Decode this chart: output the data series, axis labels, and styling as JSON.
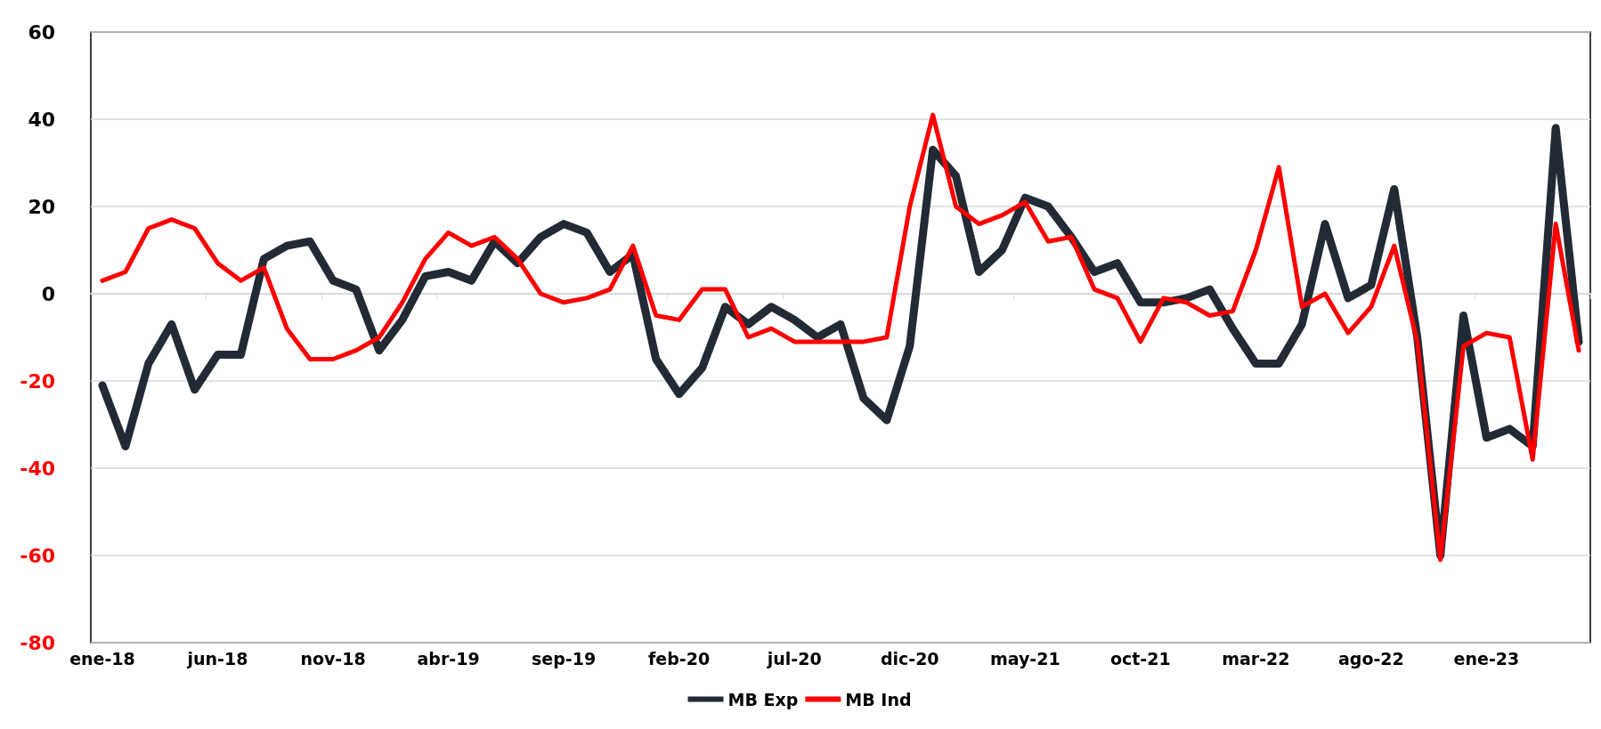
{
  "chart_data": {
    "type": "line",
    "categories": [
      "ene-18",
      null,
      null,
      null,
      null,
      "jun-18",
      null,
      null,
      null,
      null,
      "nov-18",
      null,
      null,
      null,
      null,
      "abr-19",
      null,
      null,
      null,
      null,
      "sep-19",
      null,
      null,
      null,
      null,
      "feb-20",
      null,
      null,
      null,
      null,
      "jul-20",
      null,
      null,
      null,
      null,
      "dic-20",
      null,
      null,
      null,
      null,
      "may-21",
      null,
      null,
      null,
      null,
      "oct-21",
      null,
      null,
      null,
      null,
      "mar-22",
      null,
      null,
      null,
      null,
      "ago-22",
      null,
      null,
      null,
      null,
      "ene-23",
      null,
      null,
      null,
      null
    ],
    "series": [
      {
        "name": "MB Exp",
        "color": "#222a35",
        "values": [
          -21,
          -35,
          -16,
          -7,
          -22,
          -14,
          -14,
          8,
          11,
          12,
          3,
          1,
          -13,
          -6,
          4,
          5,
          3,
          12,
          7,
          13,
          16,
          14,
          5,
          9,
          -15,
          -23,
          -17,
          -3,
          -7,
          -3,
          -6,
          -10,
          -7,
          -24,
          -29,
          -12,
          33,
          27,
          5,
          10,
          22,
          20,
          13,
          5,
          7,
          -2,
          -2,
          -1,
          1,
          -8,
          -16,
          -16,
          -7,
          16,
          -1,
          2,
          24,
          -10,
          -60,
          -5,
          -33,
          -31,
          -35,
          38,
          -11
        ]
      },
      {
        "name": "MB Ind",
        "color": "#ff0000",
        "values": [
          3,
          5,
          15,
          17,
          15,
          7,
          3,
          6,
          -8,
          -15,
          -15,
          -13,
          -10,
          -2,
          8,
          14,
          11,
          13,
          8,
          0,
          -2,
          -1,
          1,
          11,
          -5,
          -6,
          1,
          1,
          -10,
          -8,
          -11,
          -11,
          -11,
          -11,
          -10,
          20,
          41,
          20,
          16,
          18,
          21,
          12,
          13,
          1,
          -1,
          -11,
          -1,
          -2,
          -5,
          -4,
          10,
          29,
          -3,
          0,
          -9,
          -3,
          11,
          -11,
          -61,
          -12,
          -9,
          -10,
          -38,
          16,
          -13
        ]
      }
    ],
    "ylim": [
      -80,
      60
    ],
    "yticks": [
      -80,
      -60,
      -40,
      -20,
      0,
      20,
      40,
      60
    ],
    "grid": "y",
    "legend": "bottom",
    "marker": "none",
    "line_style": "solid"
  }
}
